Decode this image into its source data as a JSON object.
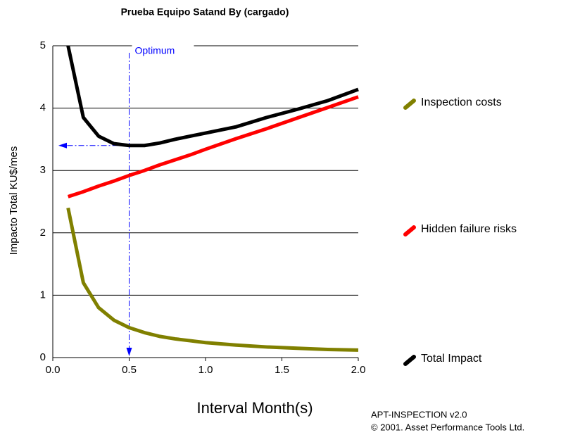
{
  "chart_data": {
    "type": "line",
    "title": "Prueba Equipo Satand By (cargado)",
    "x_label": "Interval Month(s)",
    "y_label": "Impacto Total KU$/mes",
    "x": [
      0.1,
      0.2,
      0.3,
      0.4,
      0.5,
      0.6,
      0.7,
      0.8,
      0.9,
      1.0,
      1.2,
      1.4,
      1.6,
      1.8,
      2.0
    ],
    "series": [
      {
        "name": "Inspection costs",
        "color": "#808000",
        "values": [
          2.4,
          1.2,
          0.8,
          0.6,
          0.48,
          0.4,
          0.34,
          0.3,
          0.27,
          0.24,
          0.2,
          0.17,
          0.15,
          0.13,
          0.12
        ]
      },
      {
        "name": "Hidden failure risks",
        "color": "#ff0000",
        "values": [
          2.58,
          2.66,
          2.75,
          2.83,
          2.92,
          3.0,
          3.09,
          3.17,
          3.25,
          3.34,
          3.51,
          3.67,
          3.84,
          4.01,
          4.18
        ]
      },
      {
        "name": "Total Impact",
        "color": "#000000",
        "values": [
          5.0,
          3.85,
          3.55,
          3.43,
          3.4,
          3.4,
          3.44,
          3.5,
          3.55,
          3.6,
          3.7,
          3.85,
          3.98,
          4.12,
          4.3
        ]
      }
    ],
    "xlim": [
      0,
      2
    ],
    "xticks": [
      {
        "value": 0,
        "label": "0.0"
      },
      0.5,
      {
        "value": 1,
        "label": "1.0"
      },
      1.5,
      {
        "value": 2,
        "label": "2.0"
      }
    ],
    "ylim": [
      0,
      5
    ],
    "yticks": [
      0,
      1,
      2,
      3,
      4,
      5
    ],
    "grid": true,
    "optimum": {
      "label": "Optimum",
      "x": 0.5,
      "y": 3.4,
      "color": "#0000ff"
    },
    "footer": [
      "APT-INSPECTION v2.0",
      "© 2001. Asset Performance Tools Ltd."
    ]
  }
}
